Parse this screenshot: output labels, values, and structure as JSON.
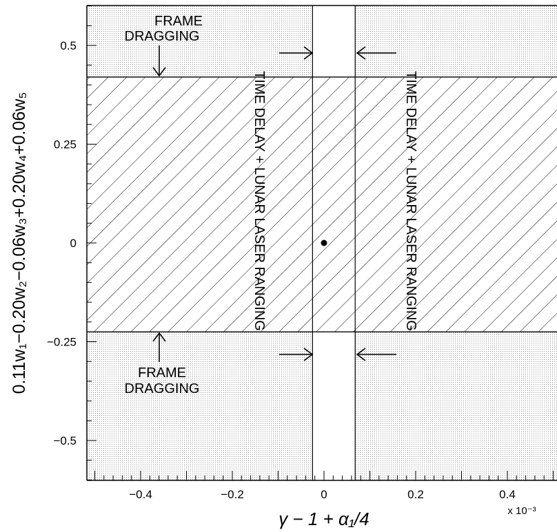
{
  "chart_data": {
    "type": "scatter",
    "xlabel": "γ − 1 + α₁/4",
    "ylabel": "0.11w₁−0.20w₂−0.06w₃+0.20w₄+0.06w₅",
    "x_multiplier_label": "x 10⁻³",
    "xlim": [
      -0.5,
      0.5
    ],
    "ylim": [
      -0.6,
      0.6
    ],
    "x_ticks": [
      -0.4,
      -0.2,
      0,
      0.2,
      0.4
    ],
    "x_tick_labels": [
      "−0.4",
      "−0.2",
      "0",
      "0.2",
      "0.4"
    ],
    "y_ticks": [
      0.5,
      0.25,
      0,
      -0.25,
      -0.5
    ],
    "y_tick_labels": [
      "0.5",
      "0.25",
      "0",
      "−0.25",
      "−0.5"
    ],
    "points": [
      {
        "x": 0,
        "y": 0
      }
    ],
    "horizontal_band": {
      "y_low": -0.225,
      "y_high": 0.42
    },
    "vertical_band": {
      "x_low": -0.025,
      "x_high": 0.068
    },
    "allowed_region": {
      "x": [
        -0.025,
        0.068
      ],
      "y": [
        -0.225,
        0.42
      ]
    },
    "annotations": {
      "frame_dragging_top": [
        "FRAME",
        "DRAGGING"
      ],
      "frame_dragging_bottom": [
        "FRAME",
        "DRAGGING"
      ],
      "time_delay_left": "TIME DELAY + LUNAR LASER RANGING",
      "time_delay_right": "TIME DELAY + LUNAR LASER RANGING"
    },
    "grid": false,
    "legend": "none"
  }
}
